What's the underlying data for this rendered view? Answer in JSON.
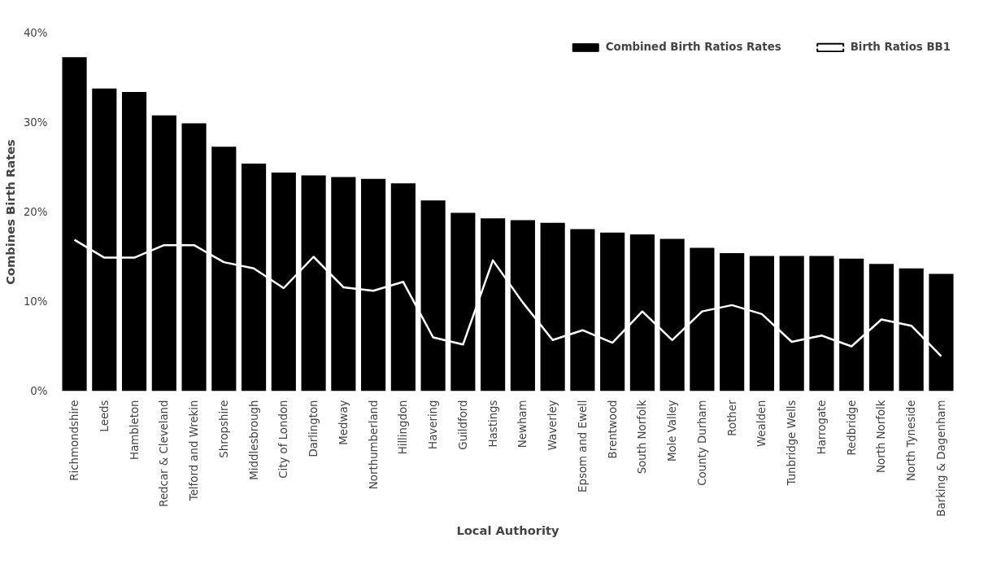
{
  "chart_data": {
    "type": "bar",
    "xlabel": "Local Authority",
    "ylabel": "Combines Birth Rates",
    "categories": [
      "Richmondshire",
      "Leeds",
      "Hambleton",
      "Redcar & Cleveland",
      "Telford and Wrekin",
      "Shropshire",
      "Middlesbrough",
      "City of London",
      "Darlington",
      "Medway",
      "Northumberland",
      "Hillingdon",
      "Havering",
      "Guildford",
      "Hastings",
      "Newham",
      "Waverley",
      "Epsom and Ewell",
      "Brentwood",
      "South Norfolk",
      "Mole Valley",
      "County Durham",
      "Rother",
      "Wealden",
      "Tunbridge Wells",
      "Harrogate",
      "Redbridge",
      "North Norfolk",
      "North Tyneside",
      "Barking & Dagenham"
    ],
    "series": [
      {
        "name": "Combined Birth Ratios Rates",
        "color": "#000000",
        "values": [
          37.3,
          33.8,
          33.4,
          30.8,
          29.9,
          27.3,
          25.4,
          24.4,
          24.1,
          23.9,
          23.7,
          23.2,
          21.3,
          19.9,
          19.3,
          19.1,
          18.8,
          18.1,
          17.7,
          17.5,
          17.0,
          16.0,
          15.4,
          15.1,
          15.1,
          15.1,
          14.8,
          14.2,
          13.7,
          13.1
        ]
      },
      {
        "name": "Birth Ratios BB1",
        "type": "line",
        "color": "#ffffff",
        "values": [
          16.9,
          14.9,
          14.9,
          16.3,
          16.3,
          14.4,
          13.7,
          11.5,
          15.0,
          11.6,
          11.2,
          12.2,
          6.0,
          5.2,
          14.6,
          9.9,
          5.7,
          6.8,
          5.4,
          8.9,
          5.7,
          8.9,
          9.6,
          8.6,
          5.5,
          6.2,
          5.0,
          8.0,
          7.3,
          3.9
        ]
      }
    ],
    "ylim": [
      0,
      40
    ],
    "yticks": [
      {
        "value": 0,
        "label": "0%"
      },
      {
        "value": 10,
        "label": "10%"
      },
      {
        "value": 20,
        "label": "20%"
      },
      {
        "value": 30,
        "label": "30%"
      },
      {
        "value": 40,
        "label": "40%"
      }
    ],
    "grid": false,
    "legend": "top right"
  }
}
